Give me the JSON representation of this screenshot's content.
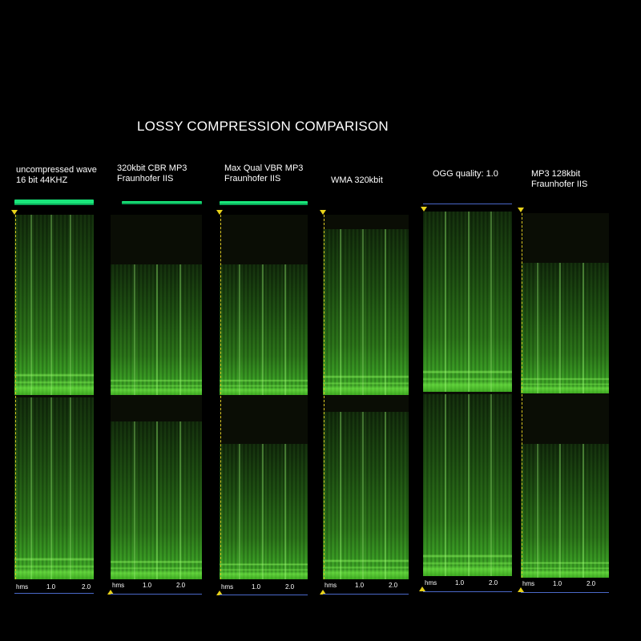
{
  "title": "LOSSY COMPRESSION COMPARISON",
  "accent_colors": {
    "level_bar": "#19e57a",
    "spectrum": "#3aa124",
    "frame_line": "#4a68c8",
    "marker": "#e8d21a"
  },
  "panels": [
    {
      "label_line1": "uncompressed wave",
      "label_line2": "16 bit 44KHZ",
      "axis": [
        "hms",
        "1.0",
        "2.0"
      ]
    },
    {
      "label_line1": "320kbit CBR MP3",
      "label_line2": "Fraunhofer IIS",
      "axis": [
        "hms",
        "1.0",
        "2.0"
      ]
    },
    {
      "label_line1": "Max Qual VBR MP3",
      "label_line2": "Fraunhofer IIS",
      "axis": [
        "hms",
        "1.0",
        "2.0"
      ]
    },
    {
      "label_line1": "WMA 320kbit",
      "label_line2": "",
      "axis": [
        "hms",
        "1.0",
        "2.0"
      ]
    },
    {
      "label_line1": "OGG quality: 1.0",
      "label_line2": "",
      "axis": [
        "hms",
        "1.0",
        "2.0"
      ]
    },
    {
      "label_line1": "MP3 128kbit",
      "label_line2": "Fraunhofer IIS",
      "axis": [
        "hms",
        "1.0",
        "2.0"
      ]
    }
  ]
}
